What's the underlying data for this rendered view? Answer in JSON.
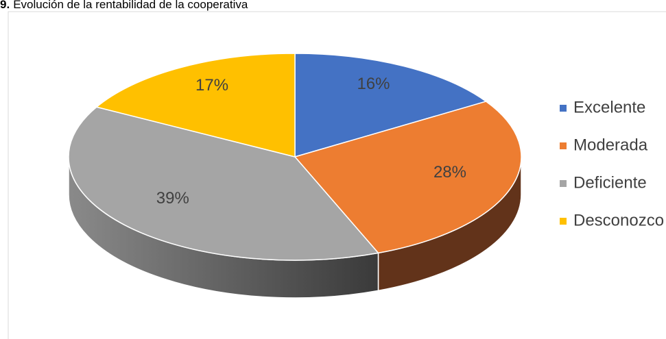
{
  "chart_data": {
    "type": "pie",
    "title_number": "9.",
    "title": "Evolución de la rentabilidad de la cooperativa",
    "categories": [
      "Excelente",
      "Moderada",
      "Deficiente",
      "Desconozco"
    ],
    "values": [
      16,
      28,
      39,
      17
    ],
    "value_labels": [
      "16%",
      "28%",
      "39%",
      "17%"
    ],
    "colors": [
      "#4472c4",
      "#ed7d31",
      "#a5a5a5",
      "#ffc000"
    ],
    "side_colors": [
      "#203864",
      "#62331a",
      "#6b6b6b",
      "#7f6000"
    ],
    "legend": "right"
  }
}
